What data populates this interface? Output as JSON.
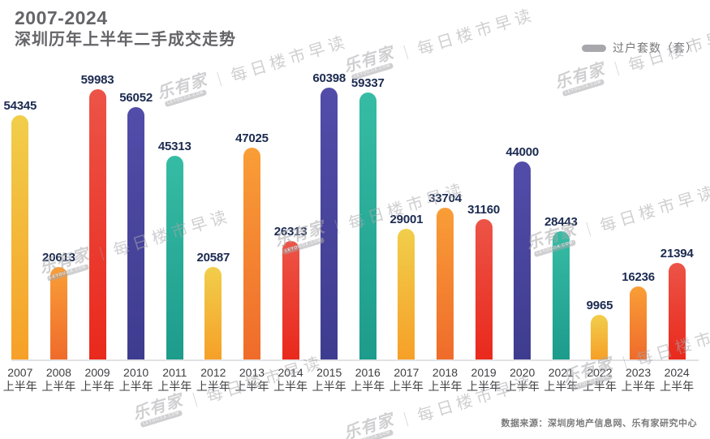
{
  "header": {
    "title_line1": "2007-2024",
    "title_line2": "深圳历年上半年二手成交走势"
  },
  "legend": {
    "label": "过户套数（套）"
  },
  "source": "数据来源：深圳房地产信息网、乐有家研究中心",
  "watermark": {
    "brand": "乐有家",
    "brand_sub": "LEYOUJIA.COM",
    "divider": "｜",
    "text": "每日楼市早读"
  },
  "chart_data": {
    "type": "bar",
    "title": "2007-2024 深圳历年上半年二手成交走势",
    "legend": "过户套数（套）",
    "categories": [
      "2007",
      "2008",
      "2009",
      "2010",
      "2011",
      "2012",
      "2013",
      "2014",
      "2015",
      "2016",
      "2017",
      "2018",
      "2019",
      "2020",
      "2021",
      "2022",
      "2023",
      "2024"
    ],
    "category_suffix": "上半年",
    "values": [
      54345,
      20613,
      59983,
      56052,
      45313,
      20587,
      47025,
      26313,
      60398,
      59337,
      29001,
      33704,
      31160,
      44000,
      28443,
      9965,
      16236,
      21394
    ],
    "ylim": [
      0,
      62000
    ],
    "grid": false,
    "value_labels": true,
    "colors": {
      "cycle": [
        {
          "name": "yellow",
          "top": "#F1CE4B",
          "bottom": "#F6A028"
        },
        {
          "name": "orange",
          "top": "#F99E37",
          "bottom": "#EF6B2B"
        },
        {
          "name": "red",
          "top": "#EC5447",
          "bottom": "#E9291C"
        },
        {
          "name": "indigo",
          "top": "#524DA9",
          "bottom": "#3E3C8F"
        },
        {
          "name": "teal",
          "top": "#36BCA4",
          "bottom": "#1D9B8B"
        }
      ],
      "value_label": "#1b2a50",
      "axis_label": "#3f3f42",
      "axis_line": "#e2e2e4",
      "title": "#656468",
      "legend_swatch": "#a8a8ac",
      "legend_text": "#77777a",
      "source_text": "#7a7a7a",
      "watermark": "#a8a8ac"
    }
  }
}
